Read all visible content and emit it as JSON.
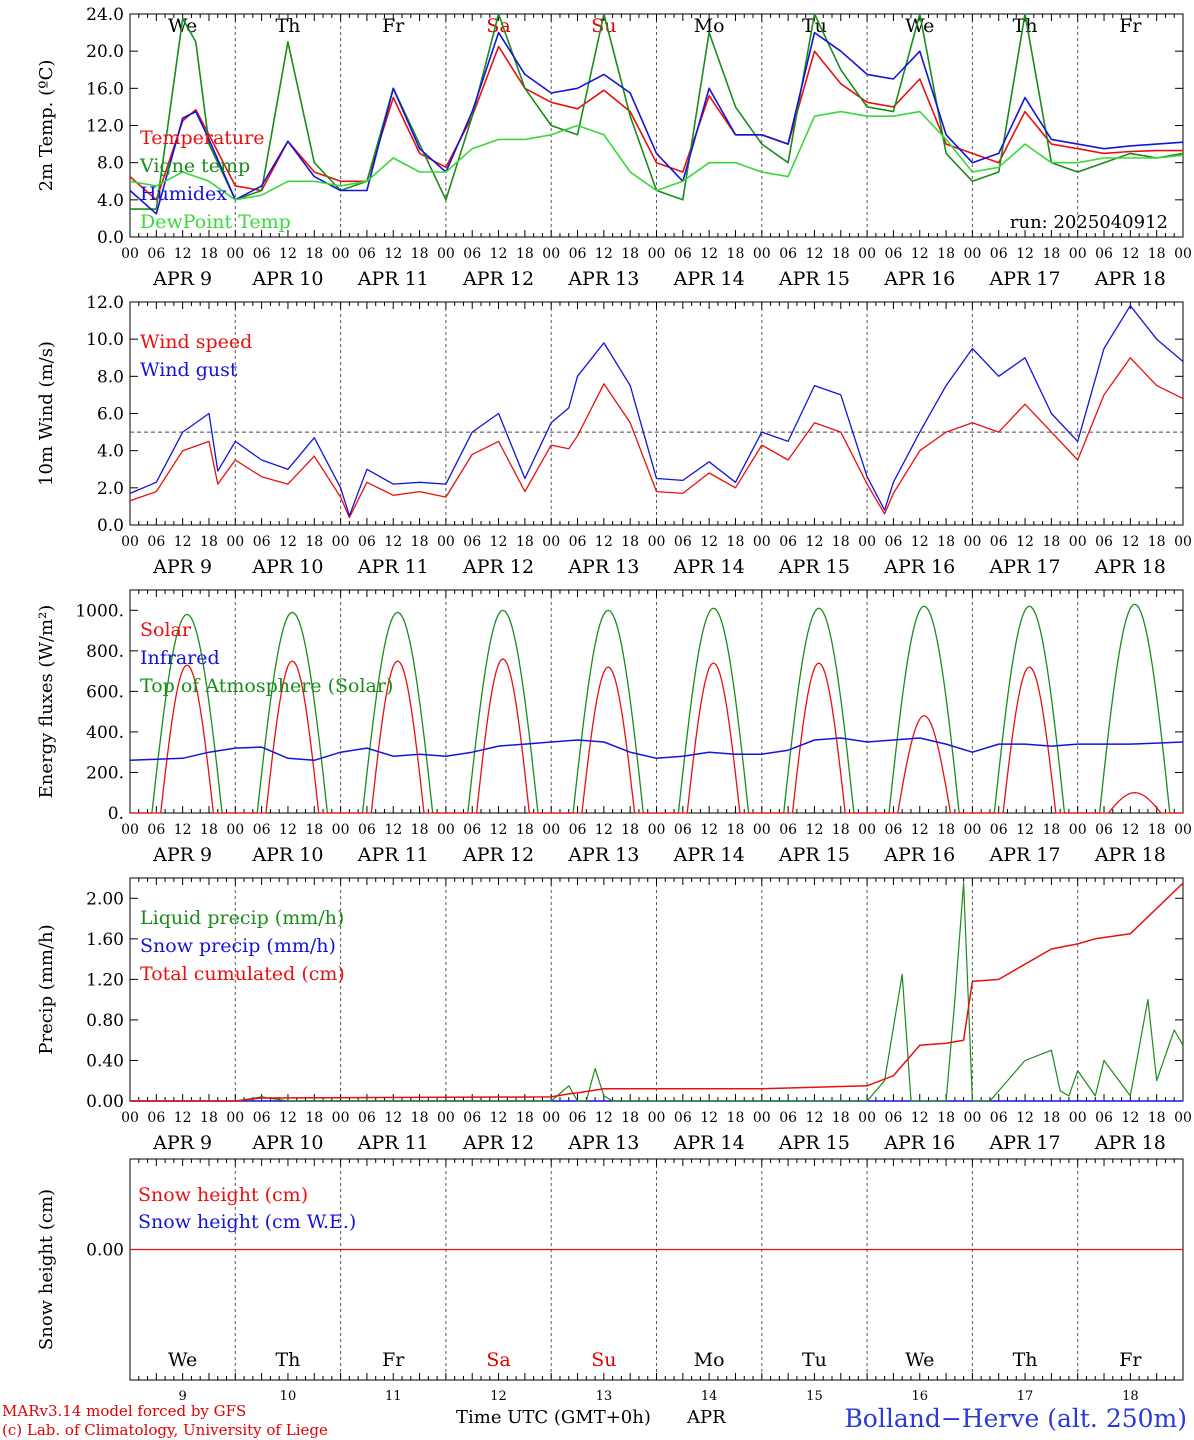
{
  "days": [
    "APR  9",
    "APR 10",
    "APR 11",
    "APR 12",
    "APR 13",
    "APR 14",
    "APR 15",
    "APR 16",
    "APR 17",
    "APR 18"
  ],
  "weekdays": [
    {
      "label": "We",
      "color": "#000000"
    },
    {
      "label": "Th",
      "color": "#000000"
    },
    {
      "label": "Fr",
      "color": "#000000"
    },
    {
      "label": "Sa",
      "color": "#e00000"
    },
    {
      "label": "Su",
      "color": "#e00000"
    },
    {
      "label": "Mo",
      "color": "#000000"
    },
    {
      "label": "Tu",
      "color": "#000000"
    },
    {
      "label": "We",
      "color": "#000000"
    },
    {
      "label": "Th",
      "color": "#000000"
    },
    {
      "label": "Fr",
      "color": "#000000"
    }
  ],
  "day_numbers": [
    "9",
    "10",
    "11",
    "12",
    "13",
    "14",
    "15",
    "16",
    "17",
    "18"
  ],
  "hour_ticks": [
    "00",
    "06",
    "12",
    "18"
  ],
  "run_label": "run: 2025040912",
  "footer": {
    "credit_line1": "MARv3.14 model forced by GFS",
    "credit_line2": "(c) Lab. of Climatology, University of Liege",
    "xaxis_label": "Time UTC (GMT+0h)",
    "month_label": "APR",
    "station": "Bolland−Herve (alt. 250m)"
  },
  "colors": {
    "red": "#e81010",
    "green": "#1a8c1a",
    "blue": "#1414d8",
    "lightgreen": "#3ad83a",
    "axis": "#000000",
    "grid": "#555555"
  },
  "chart_data": [
    {
      "type": "line",
      "id": "temp",
      "ylabel": "2m Temp. (ºC)",
      "ylim": [
        0,
        24
      ],
      "yticks": [
        "0.0",
        "4.0",
        "8.0",
        "12.0",
        "16.0",
        "20.0",
        "24.0"
      ],
      "ytick_values": [
        0,
        4,
        8,
        12,
        16,
        20,
        24
      ],
      "x_unit": "hours since APR 9 00 UTC",
      "series": [
        {
          "name": "Temperature",
          "color": "red",
          "x": [
            0,
            6,
            12,
            15,
            18,
            24,
            30,
            36,
            42,
            48,
            54,
            60,
            66,
            72,
            78,
            84,
            90,
            96,
            102,
            108,
            114,
            120,
            126,
            132,
            138,
            144,
            150,
            156,
            162,
            168,
            174,
            180,
            186,
            192,
            198,
            204,
            210,
            216,
            222,
            228,
            234,
            240
          ],
          "y": [
            6.5,
            4.0,
            12.5,
            13.7,
            11.0,
            5.5,
            5.0,
            10.3,
            7.0,
            6.0,
            6.0,
            15.0,
            9.0,
            7.5,
            13.0,
            20.5,
            16.0,
            14.5,
            13.8,
            15.8,
            13.5,
            8.0,
            7.0,
            15.2,
            11.0,
            11.0,
            10.0,
            20.0,
            16.5,
            14.5,
            14.0,
            17.0,
            10.0,
            9.0,
            8.0,
            13.5,
            10.0,
            9.5,
            9.0,
            9.2,
            9.3,
            9.3
          ]
        },
        {
          "name": "Vigne temp",
          "color": "green",
          "x": [
            0,
            6,
            12,
            15,
            18,
            24,
            30,
            36,
            42,
            48,
            54,
            60,
            66,
            72,
            78,
            84,
            90,
            96,
            102,
            108,
            114,
            120,
            126,
            132,
            138,
            144,
            150,
            156,
            162,
            168,
            174,
            180,
            186,
            192,
            198,
            204,
            210,
            216,
            222,
            228,
            234,
            240
          ],
          "y": [
            3.0,
            3.0,
            23.5,
            21.0,
            10.0,
            4.0,
            5.0,
            21.0,
            8.0,
            5.0,
            6.0,
            16.0,
            10.0,
            4.0,
            13.0,
            24.0,
            16.0,
            12.0,
            11.0,
            24.0,
            13.0,
            5.0,
            4.0,
            22.0,
            14.0,
            10.0,
            8.0,
            24.0,
            18.0,
            14.0,
            13.5,
            24.0,
            9.0,
            6.0,
            7.0,
            24.0,
            8.0,
            7.0,
            8.0,
            9.0,
            8.5,
            9.0
          ]
        },
        {
          "name": "Humidex",
          "color": "blue",
          "x": [
            0,
            6,
            12,
            15,
            18,
            24,
            30,
            36,
            42,
            48,
            54,
            60,
            66,
            72,
            78,
            84,
            90,
            96,
            102,
            108,
            114,
            120,
            126,
            132,
            138,
            144,
            150,
            156,
            162,
            168,
            174,
            180,
            186,
            192,
            198,
            204,
            210,
            216,
            222,
            228,
            234,
            240
          ],
          "y": [
            5.0,
            2.5,
            12.8,
            13.5,
            10.5,
            4.0,
            5.5,
            10.3,
            6.5,
            5.0,
            5.0,
            16.0,
            9.5,
            7.0,
            13.5,
            22.0,
            17.5,
            15.5,
            16.0,
            17.5,
            15.5,
            9.0,
            6.0,
            16.0,
            11.0,
            11.0,
            10.0,
            22.0,
            20.0,
            17.5,
            17.0,
            20.0,
            11.0,
            8.0,
            9.0,
            15.0,
            10.5,
            10.0,
            9.5,
            9.8,
            10.0,
            10.2
          ]
        },
        {
          "name": "DewPoint Temp",
          "color": "lightgreen",
          "x": [
            0,
            6,
            12,
            18,
            24,
            30,
            36,
            42,
            48,
            54,
            60,
            66,
            72,
            78,
            84,
            90,
            96,
            102,
            108,
            114,
            120,
            126,
            132,
            138,
            144,
            150,
            156,
            162,
            168,
            174,
            180,
            186,
            192,
            198,
            204,
            210,
            216,
            222,
            228,
            234,
            240
          ],
          "y": [
            6.0,
            5.5,
            7.0,
            6.0,
            4.0,
            4.5,
            6.0,
            6.0,
            5.5,
            6.0,
            8.5,
            7.0,
            7.0,
            9.5,
            10.5,
            10.5,
            11.0,
            12.0,
            11.0,
            7.0,
            5.0,
            6.0,
            8.0,
            8.0,
            7.0,
            6.5,
            13.0,
            13.5,
            13.0,
            13.0,
            13.5,
            10.5,
            7.0,
            7.5,
            10.0,
            8.0,
            8.0,
            8.5,
            8.5,
            8.5,
            8.8
          ]
        }
      ]
    },
    {
      "type": "line",
      "id": "wind",
      "ylabel": "10m Wind (m/s)",
      "ylim": [
        0,
        12
      ],
      "yticks": [
        "0.0",
        "2.0",
        "4.0",
        "6.0",
        "8.0",
        "10.0",
        "12.0"
      ],
      "ytick_values": [
        0,
        2,
        4,
        6,
        8,
        10,
        12
      ],
      "reference_line": 5,
      "series": [
        {
          "name": "Wind speed",
          "color": "red",
          "x": [
            0,
            6,
            12,
            18,
            20,
            24,
            30,
            36,
            42,
            48,
            50,
            54,
            60,
            66,
            72,
            78,
            84,
            90,
            96,
            100,
            102,
            108,
            114,
            120,
            126,
            132,
            138,
            144,
            150,
            156,
            162,
            168,
            172,
            174,
            180,
            186,
            192,
            198,
            204,
            210,
            216,
            222,
            228,
            234,
            240
          ],
          "y": [
            1.3,
            1.8,
            4.0,
            4.5,
            2.2,
            3.5,
            2.6,
            2.2,
            3.7,
            1.5,
            0.4,
            2.3,
            1.6,
            1.8,
            1.5,
            3.8,
            4.5,
            1.8,
            4.3,
            4.1,
            4.8,
            7.6,
            5.5,
            1.8,
            1.7,
            2.8,
            2.0,
            4.3,
            3.5,
            5.5,
            5.0,
            2.2,
            0.6,
            1.7,
            4.0,
            5.0,
            5.5,
            5.0,
            6.5,
            5.0,
            3.5,
            7.0,
            9.0,
            7.5,
            6.8
          ]
        },
        {
          "name": "Wind gust",
          "color": "blue",
          "x": [
            0,
            6,
            12,
            18,
            20,
            24,
            30,
            36,
            42,
            48,
            50,
            54,
            60,
            66,
            72,
            78,
            84,
            90,
            96,
            100,
            102,
            108,
            114,
            120,
            126,
            132,
            138,
            144,
            150,
            156,
            162,
            168,
            172,
            174,
            180,
            186,
            192,
            198,
            204,
            210,
            216,
            222,
            228,
            234,
            240
          ],
          "y": [
            1.7,
            2.3,
            5.0,
            6.0,
            2.9,
            4.5,
            3.5,
            3.0,
            4.7,
            2.0,
            0.5,
            3.0,
            2.2,
            2.3,
            2.2,
            5.0,
            6.0,
            2.5,
            5.5,
            6.3,
            8.0,
            9.8,
            7.5,
            2.5,
            2.4,
            3.4,
            2.3,
            5.0,
            4.5,
            7.5,
            7.0,
            2.6,
            0.8,
            2.3,
            5.0,
            7.5,
            9.5,
            8.0,
            9.0,
            6.0,
            4.5,
            9.5,
            11.8,
            10.0,
            8.8
          ]
        }
      ]
    },
    {
      "type": "line",
      "id": "flux",
      "ylabel": "Energy fluxes (W/m²)",
      "ylim": [
        0,
        1100
      ],
      "yticks": [
        "0.",
        "200.",
        "400.",
        "600.",
        "800.",
        "1000."
      ],
      "ytick_values": [
        0,
        200,
        400,
        600,
        800,
        1000
      ],
      "series": [
        {
          "name": "Solar",
          "color": "red",
          "peaks": [
            730,
            750,
            750,
            760,
            720,
            740,
            740,
            480,
            720,
            100
          ]
        },
        {
          "name": "Infrared",
          "color": "blue",
          "x": [
            0,
            12,
            18,
            24,
            30,
            36,
            42,
            48,
            54,
            60,
            66,
            72,
            78,
            84,
            90,
            96,
            102,
            108,
            114,
            120,
            126,
            132,
            138,
            144,
            150,
            156,
            162,
            168,
            174,
            180,
            186,
            192,
            198,
            204,
            210,
            216,
            222,
            228,
            234,
            240
          ],
          "y": [
            260,
            270,
            300,
            320,
            325,
            270,
            260,
            300,
            320,
            280,
            290,
            280,
            300,
            330,
            340,
            350,
            360,
            350,
            300,
            270,
            280,
            300,
            290,
            290,
            310,
            360,
            370,
            350,
            360,
            370,
            340,
            300,
            340,
            340,
            330,
            340,
            340,
            340,
            345,
            350
          ]
        },
        {
          "name": "Top of Atmosphere (Solar)",
          "color": "green",
          "peaks": [
            980,
            990,
            990,
            1000,
            1000,
            1010,
            1010,
            1020,
            1020,
            1030
          ]
        }
      ]
    },
    {
      "type": "line",
      "id": "precip",
      "ylabel": "Precip (mm/h)",
      "ylim": [
        0,
        2.2
      ],
      "yticks": [
        "0.00",
        "0.40",
        "0.80",
        "1.20",
        "1.60",
        "2.00"
      ],
      "ytick_values": [
        0,
        0.4,
        0.8,
        1.2,
        1.6,
        2.0
      ],
      "series": [
        {
          "name": "Liquid precip (mm/h)",
          "color": "green",
          "x": [
            0,
            24,
            30,
            36,
            96,
            100,
            102,
            104,
            106,
            108,
            110,
            168,
            172,
            176,
            178,
            180,
            186,
            188,
            190,
            192,
            196,
            198,
            204,
            210,
            212,
            214,
            216,
            220,
            222,
            228,
            232,
            234,
            238,
            240
          ],
          "y": [
            0,
            0,
            0.04,
            0,
            0,
            0.15,
            0,
            0,
            0.32,
            0.05,
            0,
            0,
            0.2,
            1.25,
            0,
            0,
            0,
            1.0,
            2.15,
            0,
            0,
            0.1,
            0.4,
            0.5,
            0.1,
            0.05,
            0.3,
            0.05,
            0.4,
            0.05,
            1.0,
            0.2,
            0.7,
            0.55
          ]
        },
        {
          "name": "Snow precip (mm/h)",
          "color": "blue",
          "x": [
            0,
            240
          ],
          "y": [
            0,
            0
          ]
        },
        {
          "name": "Total cumulated (cm)",
          "color": "red",
          "x": [
            0,
            24,
            30,
            96,
            100,
            102,
            108,
            144,
            168,
            174,
            176,
            180,
            186,
            190,
            192,
            198,
            204,
            210,
            216,
            220,
            228,
            234,
            240
          ],
          "y": [
            0,
            0,
            0.03,
            0.04,
            0.07,
            0.08,
            0.12,
            0.12,
            0.15,
            0.25,
            0.35,
            0.55,
            0.57,
            0.6,
            1.18,
            1.2,
            1.35,
            1.5,
            1.55,
            1.6,
            1.65,
            1.9,
            2.15
          ]
        }
      ]
    },
    {
      "type": "line",
      "id": "snow",
      "ylabel": "Snow height (cm)",
      "yticks": [
        "0.00"
      ],
      "series": [
        {
          "name": "Snow height (cm)",
          "color": "red",
          "x": [
            0,
            240
          ],
          "y": [
            0,
            0
          ]
        },
        {
          "name": "Snow height (cm W.E.)",
          "color": "blue",
          "x": [
            0,
            240
          ],
          "y": [
            0,
            0
          ]
        }
      ]
    }
  ]
}
